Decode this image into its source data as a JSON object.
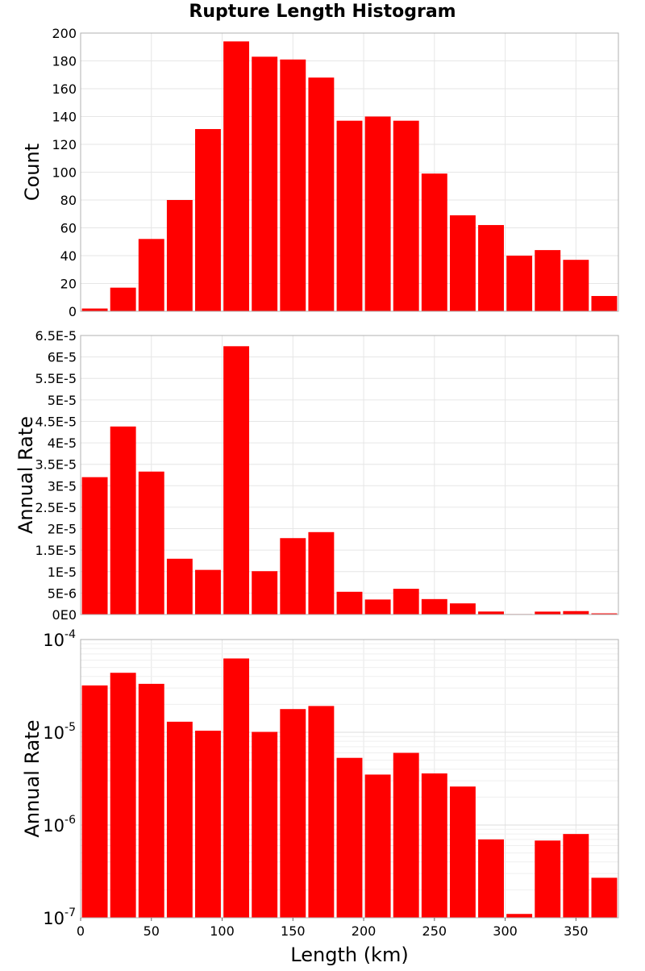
{
  "chart_data": [
    {
      "type": "bar",
      "title": "Rupture Length Histogram",
      "ylabel": "Count",
      "xlabel": "",
      "x": [
        10,
        30,
        50,
        70,
        90,
        110,
        130,
        150,
        170,
        190,
        210,
        230,
        250,
        270,
        290,
        310,
        330,
        350,
        370
      ],
      "values": [
        2,
        17,
        52,
        80,
        131,
        194,
        183,
        181,
        168,
        137,
        140,
        137,
        99,
        69,
        62,
        40,
        44,
        37,
        11
      ],
      "xlim": [
        0,
        380
      ],
      "ylim": [
        0,
        200
      ],
      "yticks": [
        0,
        20,
        40,
        60,
        80,
        100,
        120,
        140,
        160,
        180,
        200
      ],
      "yticklabels": [
        "0",
        "20",
        "40",
        "60",
        "80",
        "100",
        "120",
        "140",
        "160",
        "180",
        "200"
      ],
      "grid": true,
      "color": "#ff0000"
    },
    {
      "type": "bar",
      "ylabel": "Annual Rate",
      "xlabel": "",
      "x": [
        10,
        30,
        50,
        70,
        90,
        110,
        130,
        150,
        170,
        190,
        210,
        230,
        250,
        270,
        290,
        310,
        330,
        350,
        370
      ],
      "values": [
        3.2e-05,
        4.38e-05,
        3.33e-05,
        1.3e-05,
        1.04e-05,
        6.25e-05,
        1.01e-05,
        1.78e-05,
        1.92e-05,
        5.3e-06,
        3.5e-06,
        6e-06,
        3.6e-06,
        2.6e-06,
        7e-07,
        1.1e-07,
        6.8e-07,
        8e-07,
        2.7e-07
      ],
      "xlim": [
        0,
        380
      ],
      "ylim": [
        0,
        6.5e-05
      ],
      "yticks": [
        0,
        5e-06,
        1e-05,
        1.5e-05,
        2e-05,
        2.5e-05,
        3e-05,
        3.5e-05,
        4e-05,
        4.5e-05,
        5e-05,
        5.5e-05,
        6e-05,
        6.5e-05
      ],
      "yticklabels": [
        "0E0",
        "5E-6",
        "1E-5",
        "1.5E-5",
        "2E-5",
        "2.5E-5",
        "3E-5",
        "3.5E-5",
        "4E-5",
        "4.5E-5",
        "5E-5",
        "5.5E-5",
        "6E-5",
        "6.5E-5"
      ],
      "grid": true,
      "color": "#ff0000"
    },
    {
      "type": "bar",
      "ylabel": "Annual Rate",
      "xlabel": "Length (km)",
      "yscale": "log",
      "x": [
        10,
        30,
        50,
        70,
        90,
        110,
        130,
        150,
        170,
        190,
        210,
        230,
        250,
        270,
        290,
        310,
        330,
        350,
        370
      ],
      "values": [
        3.2e-05,
        4.38e-05,
        3.33e-05,
        1.3e-05,
        1.04e-05,
        6.25e-05,
        1.01e-05,
        1.78e-05,
        1.92e-05,
        5.3e-06,
        3.5e-06,
        6e-06,
        3.6e-06,
        2.6e-06,
        7e-07,
        1.1e-07,
        6.8e-07,
        8e-07,
        2.7e-07
      ],
      "xlim": [
        0,
        380
      ],
      "ylim": [
        1e-07,
        0.0001
      ],
      "yticks": [
        1e-07,
        1e-06,
        1e-05,
        0.0001
      ],
      "yticklabels_base": [
        "10",
        "10",
        "10",
        "10"
      ],
      "yticklabels_exp": [
        "-7",
        "-6",
        "-5",
        "-4"
      ],
      "xticks": [
        0,
        50,
        100,
        150,
        200,
        250,
        300,
        350
      ],
      "xticklabels": [
        "0",
        "50",
        "100",
        "150",
        "200",
        "250",
        "300",
        "350"
      ],
      "grid": true,
      "color": "#ff0000"
    }
  ]
}
